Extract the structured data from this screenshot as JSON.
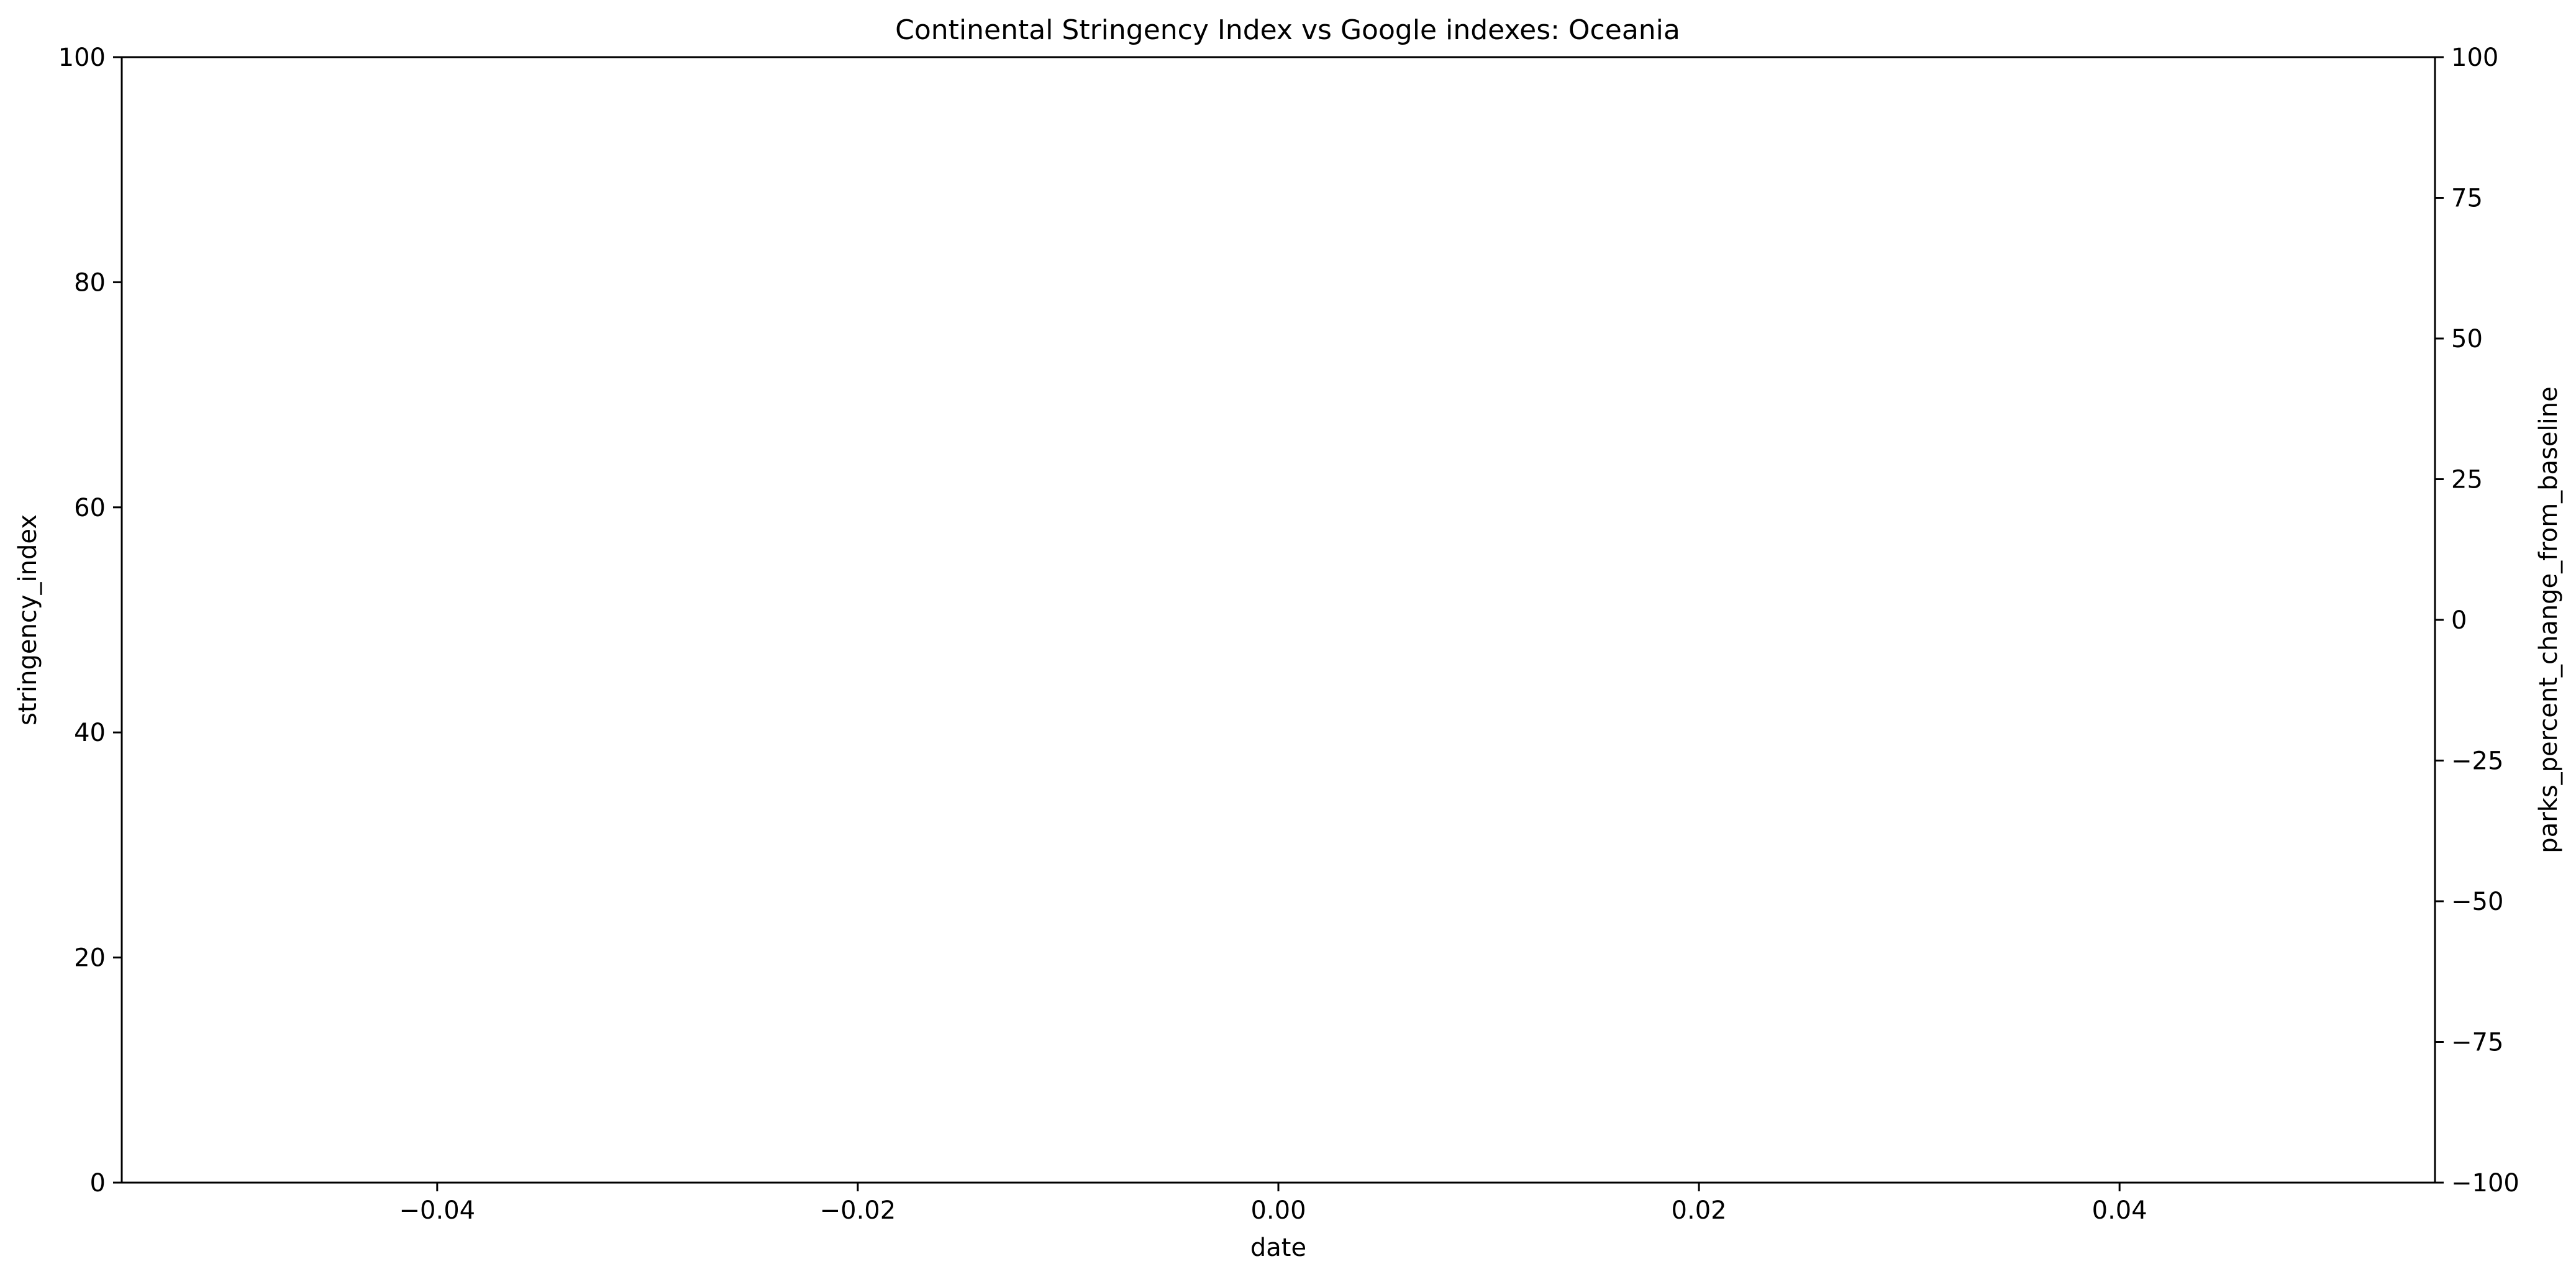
{
  "chart_data": {
    "type": "line",
    "title": "Continental Stringency Index vs Google indexes: Oceania",
    "xlabel": "date",
    "ylabel": "stringency_index",
    "y2label": "parks_percent_change_from_baseline",
    "xlim": [
      -0.055,
      0.055
    ],
    "ylim": [
      0,
      100
    ],
    "y2lim": [
      -100,
      100
    ],
    "x_ticks": [
      "−0.04",
      "−0.02",
      "0.00",
      "0.02",
      "0.04"
    ],
    "x_tick_values": [
      -0.04,
      -0.02,
      0.0,
      0.02,
      0.04
    ],
    "y_ticks": [
      "0",
      "20",
      "40",
      "60",
      "80",
      "100"
    ],
    "y_tick_values": [
      0,
      20,
      40,
      60,
      80,
      100
    ],
    "y2_ticks": [
      "−100",
      "−75",
      "−50",
      "−25",
      "0",
      "25",
      "50",
      "75",
      "100"
    ],
    "y2_tick_values": [
      -100,
      -75,
      -50,
      -25,
      0,
      25,
      50,
      75,
      100
    ],
    "series": [],
    "grid": false,
    "colors": {
      "axis": "#000000",
      "background": "#ffffff"
    }
  }
}
